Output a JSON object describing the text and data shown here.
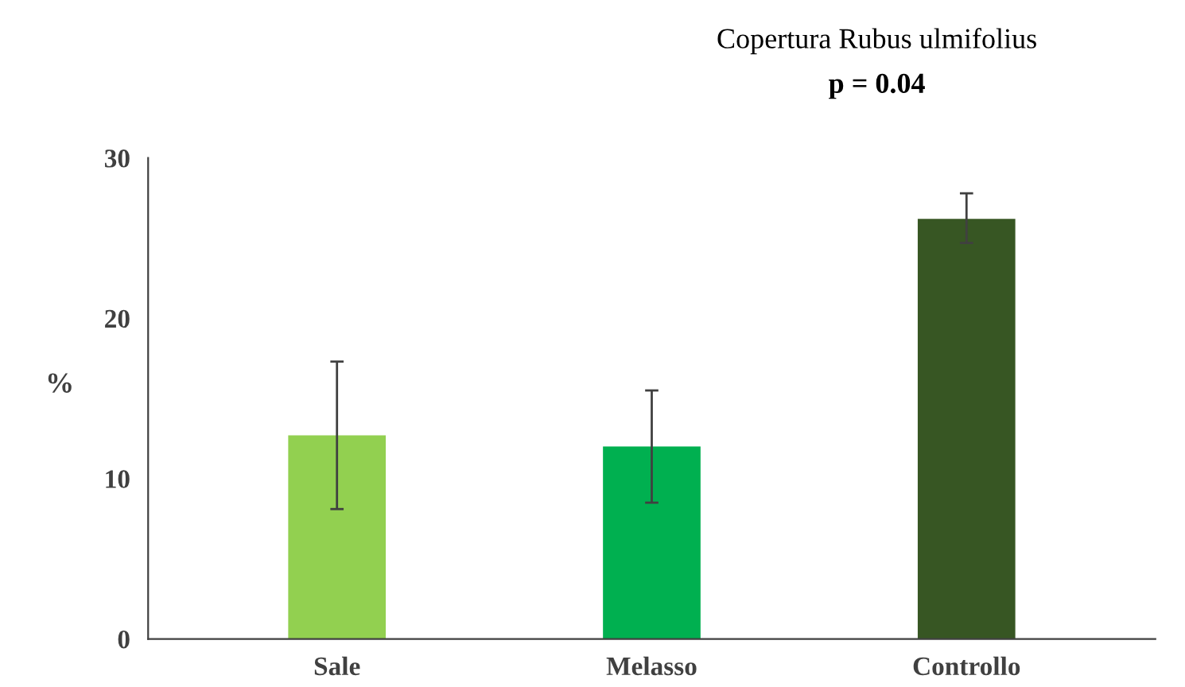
{
  "chart_data": {
    "type": "bar",
    "title": "Copertura Rubus ulmifolius",
    "subtitle": "p = 0.04",
    "ylabel": "%",
    "categories": [
      "Sale",
      "Melasso",
      "Controllo"
    ],
    "values": [
      12.7,
      12.0,
      26.2
    ],
    "colors": [
      "#92d050",
      "#00b050",
      "#375623"
    ],
    "errors": [
      [
        8.1,
        17.3
      ],
      [
        8.5,
        15.5
      ],
      [
        24.7,
        27.8
      ]
    ],
    "ylim": [
      0,
      30
    ],
    "yticks": [
      0,
      10,
      20,
      30
    ],
    "grid": false
  }
}
